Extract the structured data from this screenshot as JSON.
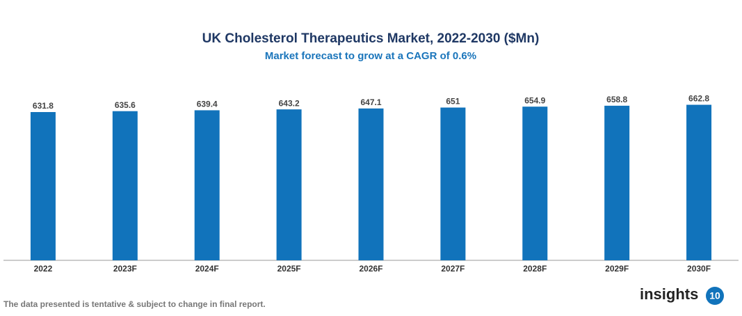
{
  "chart_data": {
    "type": "bar",
    "title": "UK Cholesterol Therapeutics Market, 2022-2030 ($Mn)",
    "subtitle": "Market forecast to grow at a CAGR of 0.6%",
    "categories": [
      "2022",
      "2023F",
      "2024F",
      "2025F",
      "2026F",
      "2027F",
      "2028F",
      "2029F",
      "2030F"
    ],
    "values": [
      631.8,
      635.6,
      639.4,
      643.2,
      647.1,
      651,
      654.9,
      658.8,
      662.8
    ],
    "color": "#1173bb",
    "ylim": [
      0,
      700
    ]
  },
  "footer": {
    "note": "The data presented is tentative & subject to change in final report.",
    "logo_text": "insights",
    "logo_badge": "10"
  }
}
